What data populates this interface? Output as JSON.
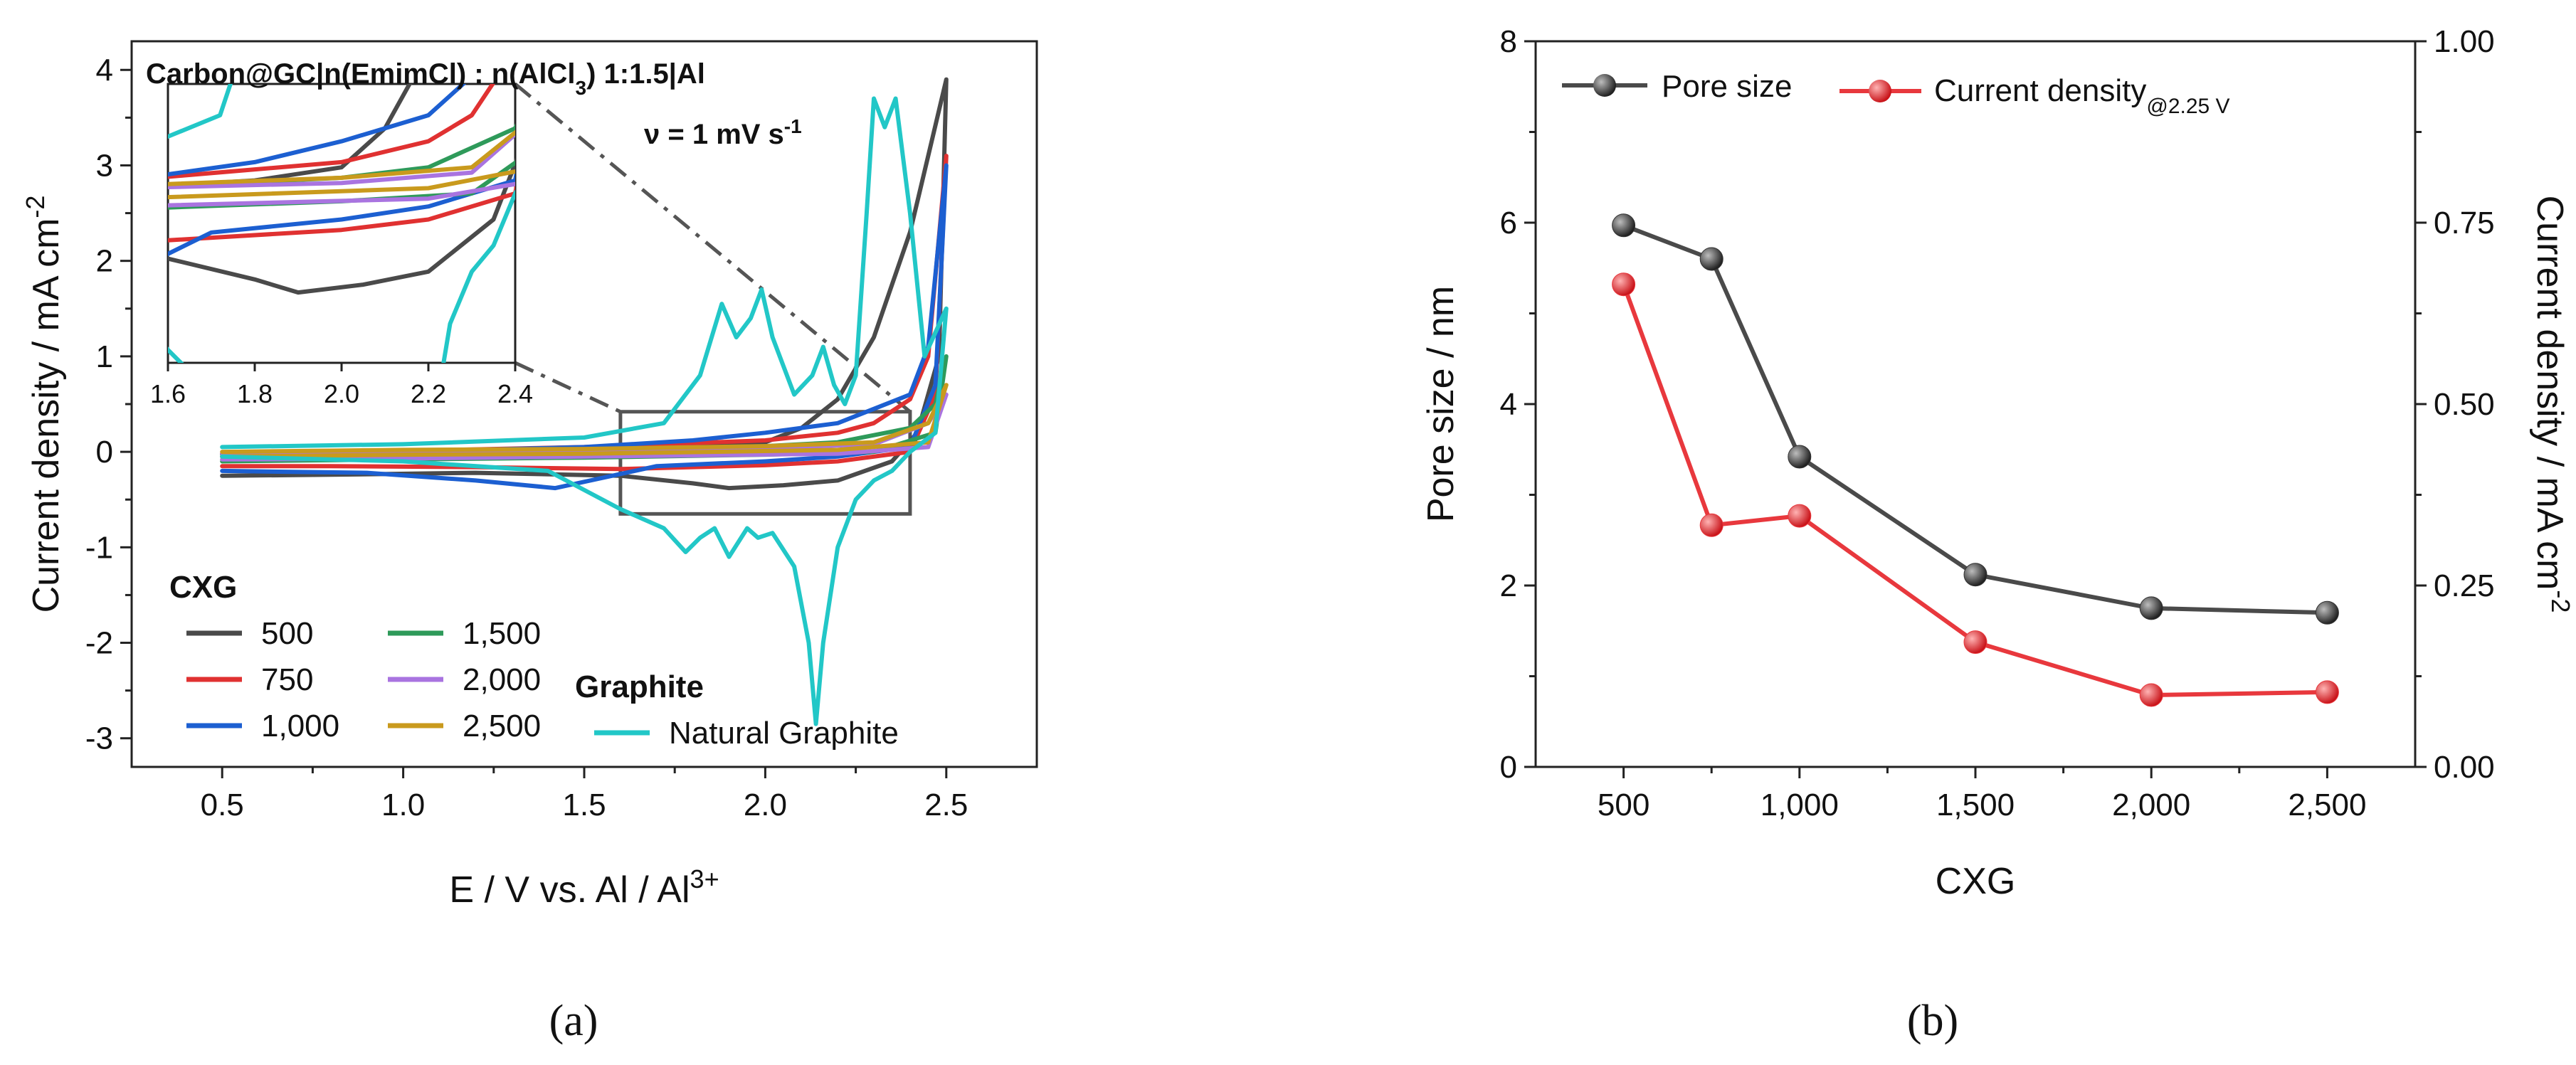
{
  "chart_data": [
    {
      "panel": "(a)",
      "type": "line",
      "title_line1": "Carbon@GC|n(EmimCl) : n(AlCl3) 1:1.5|Al",
      "title_line1_parts": [
        "Carbon@GC|n(EmimCl) : n(AlCl",
        "3",
        ") 1:1.5|Al"
      ],
      "title_line2_parts": [
        "ν = 1 mV s",
        "-1"
      ],
      "xlabel_parts": [
        "E / V vs. Al / Al",
        "3+"
      ],
      "ylabel_parts": [
        "Current density / mA cm",
        "-2"
      ],
      "xlim": [
        0.25,
        2.75
      ],
      "ylim": [
        -3.3,
        4.3
      ],
      "xticks": [
        "0.5",
        "1.0",
        "1.5",
        "2.0",
        "2.5"
      ],
      "yticks": [
        "-3",
        "-2",
        "-1",
        "0",
        "1",
        "2",
        "3",
        "4"
      ],
      "zoom_box": {
        "x": [
          1.6,
          2.4
        ],
        "y": [
          -0.65,
          0.42
        ]
      },
      "legend_group1_title": "CXG",
      "legend_group2_title": "Graphite",
      "series": [
        {
          "name": "500",
          "color": "#4a4a4a",
          "forward": [
            [
              0.5,
              -0.02
            ],
            [
              1.0,
              0.0
            ],
            [
              1.5,
              0.02
            ],
            [
              1.8,
              0.05
            ],
            [
              2.0,
              0.1
            ],
            [
              2.1,
              0.25
            ],
            [
              2.2,
              0.55
            ],
            [
              2.3,
              1.2
            ],
            [
              2.4,
              2.3
            ],
            [
              2.45,
              3.1
            ],
            [
              2.5,
              3.9
            ]
          ],
          "reverse": [
            [
              2.5,
              3.9
            ],
            [
              2.48,
              1.0
            ],
            [
              2.42,
              0.2
            ],
            [
              2.35,
              -0.1
            ],
            [
              2.2,
              -0.3
            ],
            [
              2.05,
              -0.35
            ],
            [
              1.9,
              -0.38
            ],
            [
              1.8,
              -0.33
            ],
            [
              1.6,
              -0.25
            ],
            [
              1.2,
              -0.22
            ],
            [
              0.8,
              -0.24
            ],
            [
              0.5,
              -0.25
            ]
          ]
        },
        {
          "name": "750",
          "color": "#e03131",
          "forward": [
            [
              0.5,
              -0.02
            ],
            [
              1.0,
              0.01
            ],
            [
              1.5,
              0.05
            ],
            [
              2.0,
              0.12
            ],
            [
              2.2,
              0.2
            ],
            [
              2.3,
              0.3
            ],
            [
              2.4,
              0.55
            ],
            [
              2.45,
              1.0
            ],
            [
              2.5,
              3.1
            ]
          ],
          "reverse": [
            [
              2.5,
              3.1
            ],
            [
              2.47,
              0.6
            ],
            [
              2.4,
              0.0
            ],
            [
              2.2,
              -0.1
            ],
            [
              2.0,
              -0.14
            ],
            [
              1.6,
              -0.18
            ],
            [
              1.2,
              -0.16
            ],
            [
              0.8,
              -0.15
            ],
            [
              0.5,
              -0.15
            ]
          ]
        },
        {
          "name": "1,000",
          "color": "#1c5fd1",
          "forward": [
            [
              0.5,
              -0.05
            ],
            [
              1.0,
              0.0
            ],
            [
              1.5,
              0.05
            ],
            [
              1.8,
              0.12
            ],
            [
              2.0,
              0.2
            ],
            [
              2.2,
              0.3
            ],
            [
              2.4,
              0.6
            ],
            [
              2.45,
              1.1
            ],
            [
              2.5,
              3.0
            ]
          ],
          "reverse": [
            [
              2.5,
              3.0
            ],
            [
              2.47,
              0.7
            ],
            [
              2.4,
              0.05
            ],
            [
              2.2,
              -0.05
            ],
            [
              2.0,
              -0.1
            ],
            [
              1.7,
              -0.15
            ],
            [
              1.42,
              -0.38
            ],
            [
              1.2,
              -0.3
            ],
            [
              0.9,
              -0.22
            ],
            [
              0.5,
              -0.2
            ]
          ]
        },
        {
          "name": "1,500",
          "color": "#2e9a5a",
          "forward": [
            [
              0.5,
              -0.03
            ],
            [
              1.0,
              0.0
            ],
            [
              1.5,
              0.02
            ],
            [
              2.0,
              0.06
            ],
            [
              2.2,
              0.1
            ],
            [
              2.4,
              0.25
            ],
            [
              2.47,
              0.5
            ],
            [
              2.5,
              1.0
            ]
          ],
          "reverse": [
            [
              2.5,
              1.0
            ],
            [
              2.47,
              0.2
            ],
            [
              2.3,
              0.0
            ],
            [
              2.0,
              -0.03
            ],
            [
              1.5,
              -0.06
            ],
            [
              1.0,
              -0.08
            ],
            [
              0.5,
              -0.1
            ]
          ]
        },
        {
          "name": "2,000",
          "color": "#a974e0",
          "forward": [
            [
              0.5,
              -0.02
            ],
            [
              1.0,
              0.0
            ],
            [
              1.5,
              0.02
            ],
            [
              2.0,
              0.04
            ],
            [
              2.3,
              0.08
            ],
            [
              2.45,
              0.3
            ],
            [
              2.5,
              0.6
            ]
          ],
          "reverse": [
            [
              2.5,
              0.6
            ],
            [
              2.45,
              0.05
            ],
            [
              2.2,
              -0.02
            ],
            [
              1.5,
              -0.05
            ],
            [
              1.0,
              -0.07
            ],
            [
              0.5,
              -0.08
            ]
          ]
        },
        {
          "name": "2,500",
          "color": "#c99a1d",
          "forward": [
            [
              0.5,
              0.0
            ],
            [
              1.0,
              0.02
            ],
            [
              1.5,
              0.03
            ],
            [
              2.0,
              0.06
            ],
            [
              2.3,
              0.1
            ],
            [
              2.45,
              0.3
            ],
            [
              2.5,
              0.7
            ]
          ],
          "reverse": [
            [
              2.5,
              0.7
            ],
            [
              2.45,
              0.1
            ],
            [
              2.2,
              0.02
            ],
            [
              1.5,
              -0.02
            ],
            [
              1.0,
              -0.03
            ],
            [
              0.5,
              -0.05
            ]
          ]
        },
        {
          "name": "Natural Graphite",
          "color": "#22c7c7",
          "forward": [
            [
              0.5,
              0.05
            ],
            [
              1.0,
              0.08
            ],
            [
              1.5,
              0.15
            ],
            [
              1.72,
              0.3
            ],
            [
              1.82,
              0.8
            ],
            [
              1.88,
              1.55
            ],
            [
              1.92,
              1.2
            ],
            [
              1.96,
              1.4
            ],
            [
              1.99,
              1.7
            ],
            [
              2.02,
              1.2
            ],
            [
              2.08,
              0.6
            ],
            [
              2.13,
              0.8
            ],
            [
              2.16,
              1.1
            ],
            [
              2.19,
              0.7
            ],
            [
              2.22,
              0.5
            ],
            [
              2.25,
              0.8
            ],
            [
              2.28,
              2.5
            ],
            [
              2.3,
              3.7
            ],
            [
              2.33,
              3.4
            ],
            [
              2.36,
              3.7
            ],
            [
              2.4,
              2.5
            ],
            [
              2.44,
              1.0
            ],
            [
              2.5,
              1.5
            ]
          ],
          "reverse": [
            [
              2.5,
              1.5
            ],
            [
              2.47,
              0.2
            ],
            [
              2.4,
              0.0
            ],
            [
              2.35,
              -0.2
            ],
            [
              2.3,
              -0.3
            ],
            [
              2.25,
              -0.5
            ],
            [
              2.2,
              -1.0
            ],
            [
              2.16,
              -2.0
            ],
            [
              2.14,
              -2.85
            ],
            [
              2.12,
              -2.0
            ],
            [
              2.08,
              -1.2
            ],
            [
              2.02,
              -0.85
            ],
            [
              1.98,
              -0.9
            ],
            [
              1.95,
              -0.8
            ],
            [
              1.9,
              -1.1
            ],
            [
              1.86,
              -0.8
            ],
            [
              1.82,
              -0.9
            ],
            [
              1.78,
              -1.05
            ],
            [
              1.72,
              -0.8
            ],
            [
              1.6,
              -0.6
            ],
            [
              1.4,
              -0.2
            ],
            [
              1.0,
              -0.1
            ],
            [
              0.5,
              -0.05
            ]
          ]
        }
      ],
      "inset": {
        "xlim": [
          1.6,
          2.4
        ],
        "ylim": [
          -0.65,
          0.42
        ],
        "xticks": [
          "1.6",
          "1.8",
          "2.0",
          "2.2",
          "2.4"
        ]
      }
    },
    {
      "panel": "(b)",
      "type": "line",
      "xlabel": "CXG",
      "ylabel_left": "Pore size / nm",
      "ylabel_right_parts": [
        "Current density / mA cm",
        "-2"
      ],
      "categories": [
        "500",
        "1,000",
        "1,500",
        "2,000",
        "2,500"
      ],
      "x": [
        500,
        750,
        1000,
        1500,
        2000,
        2500
      ],
      "xlim": [
        250,
        2750
      ],
      "ylim_left": [
        0,
        8
      ],
      "ylim_right": [
        0,
        1.0
      ],
      "yticks_left": [
        "0",
        "2",
        "4",
        "6",
        "8"
      ],
      "yticks_right": [
        "0.00",
        "0.25",
        "0.50",
        "0.75",
        "1.00"
      ],
      "series": [
        {
          "name": "Pore size",
          "axis": "left",
          "color": "#4a4a4a",
          "marker_color": "#333333",
          "values": [
            5.97,
            5.6,
            3.42,
            2.12,
            1.75,
            1.7
          ]
        },
        {
          "name": "Current density",
          "name_sub": "@2.25 V",
          "axis": "right",
          "color": "#e8383d",
          "marker_color": "#e8383d",
          "values": [
            0.665,
            0.333,
            0.346,
            0.172,
            0.099,
            0.103
          ]
        }
      ]
    }
  ]
}
